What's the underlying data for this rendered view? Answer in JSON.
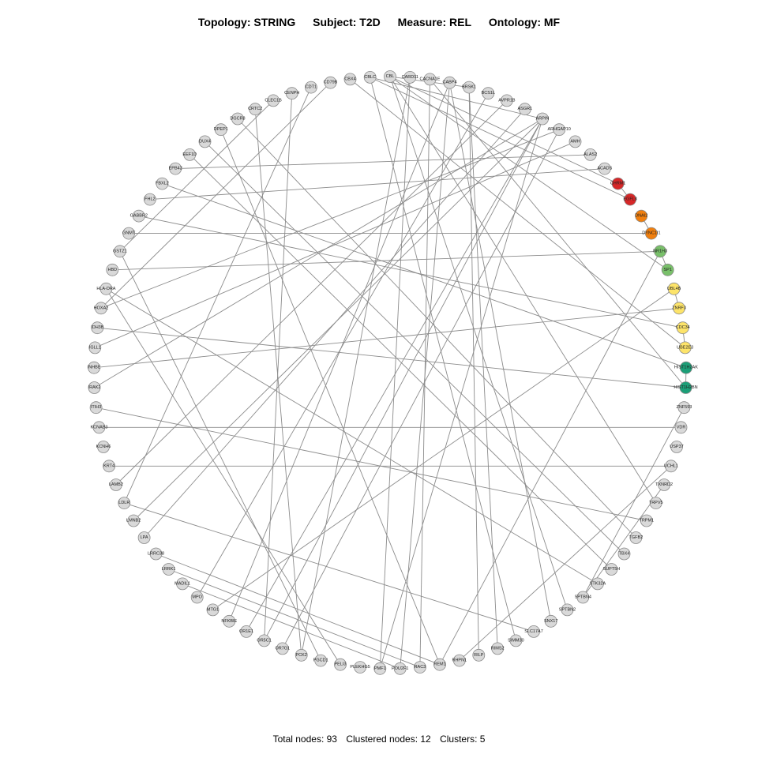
{
  "header": {
    "topology": "Topology: STRING",
    "subject": "Subject: T2D",
    "measure": "Measure: REL",
    "ontology": "Ontology: MF"
  },
  "footer": {
    "total": "Total nodes: 93",
    "clustered": "Clustered nodes: 12",
    "clusters": "Clusters: 5"
  },
  "colors": {
    "default": "#d9d9d9",
    "red": "#d62728",
    "orange": "#f07f0e",
    "green": "#79c06a",
    "yellow": "#fde46a",
    "teal": "#1b9e77"
  },
  "nodes": [
    {
      "id": "CBL",
      "color": "default"
    },
    {
      "id": "CARD11",
      "color": "default"
    },
    {
      "id": "CACNA1E",
      "color": "default"
    },
    {
      "id": "CABP4",
      "color": "default"
    },
    {
      "id": "BRSK1",
      "color": "default"
    },
    {
      "id": "BCS1L",
      "color": "default"
    },
    {
      "id": "AVPR1B",
      "color": "default"
    },
    {
      "id": "ASGR1",
      "color": "default"
    },
    {
      "id": "ARPIN",
      "color": "default"
    },
    {
      "id": "ARHGAP10",
      "color": "default"
    },
    {
      "id": "AMH",
      "color": "default"
    },
    {
      "id": "ALAS2",
      "color": "default"
    },
    {
      "id": "ACADS",
      "color": "default"
    },
    {
      "id": "CHRM1",
      "color": "red"
    },
    {
      "id": "EGFL8",
      "color": "red"
    },
    {
      "id": "DNAI2",
      "color": "orange"
    },
    {
      "id": "DYNC1I1",
      "color": "orange"
    },
    {
      "id": "NR1H3",
      "color": "green"
    },
    {
      "id": "SP1",
      "color": "green"
    },
    {
      "id": "UBL4B",
      "color": "yellow"
    },
    {
      "id": "ZNRF3",
      "color": "yellow"
    },
    {
      "id": "CDC34",
      "color": "yellow"
    },
    {
      "id": "UBE2E3",
      "color": "yellow"
    },
    {
      "id": "HIST1H2AK",
      "color": "teal"
    },
    {
      "id": "HIST1H2BN",
      "color": "teal"
    },
    {
      "id": "ZNF593",
      "color": "default"
    },
    {
      "id": "VDR",
      "color": "default"
    },
    {
      "id": "USP37",
      "color": "default"
    },
    {
      "id": "UCHL1",
      "color": "default"
    },
    {
      "id": "TXNRD2",
      "color": "default"
    },
    {
      "id": "TRPV5",
      "color": "default"
    },
    {
      "id": "TRPM1",
      "color": "default"
    },
    {
      "id": "TGFB2",
      "color": "default"
    },
    {
      "id": "TBX4",
      "color": "default"
    },
    {
      "id": "SUPT5H",
      "color": "default"
    },
    {
      "id": "STK32A",
      "color": "default"
    },
    {
      "id": "SPTBN4",
      "color": "default"
    },
    {
      "id": "SPTBN2",
      "color": "default"
    },
    {
      "id": "SNX17",
      "color": "default"
    },
    {
      "id": "SLC17A7",
      "color": "default"
    },
    {
      "id": "SIMM30",
      "color": "default"
    },
    {
      "id": "RIMS2",
      "color": "default"
    },
    {
      "id": "RILP",
      "color": "default"
    },
    {
      "id": "RHPN1",
      "color": "default"
    },
    {
      "id": "REM1",
      "color": "default"
    },
    {
      "id": "RAC3",
      "color": "default"
    },
    {
      "id": "POU2F1",
      "color": "default"
    },
    {
      "id": "PMF1",
      "color": "default"
    },
    {
      "id": "PLEKHG5",
      "color": "default"
    },
    {
      "id": "PELI3",
      "color": "default"
    },
    {
      "id": "PGCD1",
      "color": "default"
    },
    {
      "id": "PCK2",
      "color": "default"
    },
    {
      "id": "OR7G1",
      "color": "default"
    },
    {
      "id": "OR5C1",
      "color": "default"
    },
    {
      "id": "OR1E1",
      "color": "default"
    },
    {
      "id": "NFKBIE",
      "color": "default"
    },
    {
      "id": "MTG1",
      "color": "default"
    },
    {
      "id": "MPO",
      "color": "default"
    },
    {
      "id": "MADIL1",
      "color": "default"
    },
    {
      "id": "LRRK1",
      "color": "default"
    },
    {
      "id": "LRRC38",
      "color": "default"
    },
    {
      "id": "LPA",
      "color": "default"
    },
    {
      "id": "LMNB2",
      "color": "default"
    },
    {
      "id": "LDLR",
      "color": "default"
    },
    {
      "id": "LAMB2",
      "color": "default"
    },
    {
      "id": "KRT4",
      "color": "default"
    },
    {
      "id": "KCNH6",
      "color": "default"
    },
    {
      "id": "KCNAB3",
      "color": "default"
    },
    {
      "id": "ITIH3",
      "color": "default"
    },
    {
      "id": "IRAK2",
      "color": "default"
    },
    {
      "id": "INHBE",
      "color": "default"
    },
    {
      "id": "IGLL1",
      "color": "default"
    },
    {
      "id": "IDH3B",
      "color": "default"
    },
    {
      "id": "HOXA2",
      "color": "default"
    },
    {
      "id": "HLA-DRA",
      "color": "default"
    },
    {
      "id": "HBD",
      "color": "default"
    },
    {
      "id": "GSTZ1",
      "color": "default"
    },
    {
      "id": "GNMT",
      "color": "default"
    },
    {
      "id": "GABBR2",
      "color": "default"
    },
    {
      "id": "FHL2",
      "color": "default"
    },
    {
      "id": "FBXL2",
      "color": "default"
    },
    {
      "id": "EPB42",
      "color": "default"
    },
    {
      "id": "EEF1D",
      "color": "default"
    },
    {
      "id": "DUX4",
      "color": "default"
    },
    {
      "id": "DPEP1",
      "color": "default"
    },
    {
      "id": "DGCR8",
      "color": "default"
    },
    {
      "id": "CRTC2",
      "color": "default"
    },
    {
      "id": "CLEC1B",
      "color": "default"
    },
    {
      "id": "CENPH",
      "color": "default"
    },
    {
      "id": "CDT1",
      "color": "default"
    },
    {
      "id": "CD79B",
      "color": "default"
    },
    {
      "id": "CBX4",
      "color": "default"
    },
    {
      "id": "CBLC",
      "color": "default"
    }
  ],
  "edges": [
    [
      "CBL",
      "SPTBN2"
    ],
    [
      "CBL",
      "SP1"
    ],
    [
      "CBL",
      "CHRM1"
    ],
    [
      "CARD11",
      "PMF1"
    ],
    [
      "CACNA1E",
      "HIST1H2BN"
    ],
    [
      "CABP4",
      "SNX17"
    ],
    [
      "BRSK1",
      "RILP"
    ],
    [
      "CBLC",
      "EGFL8"
    ],
    [
      "CBX4",
      "UBE2E3"
    ],
    [
      "CD79B",
      "HOXA2"
    ],
    [
      "CDT1",
      "LDLR"
    ],
    [
      "CENPH",
      "OR5C1"
    ],
    [
      "CLEC1B",
      "GSTZ1"
    ],
    [
      "CRTC2",
      "PCK2"
    ],
    [
      "DGCR8",
      "TGFB2"
    ],
    [
      "DPEP1",
      "REM1"
    ],
    [
      "DUX4",
      "TBX4"
    ],
    [
      "EEF1D",
      "SUPT5H"
    ],
    [
      "EPB42",
      "ALAS2"
    ],
    [
      "FBXL2",
      "HIST1H2AK"
    ],
    [
      "FHL2",
      "ACADS"
    ],
    [
      "GABBR2",
      "CDC34"
    ],
    [
      "GNMT",
      "DYNC1I1"
    ],
    [
      "HBD",
      "NR1H3"
    ],
    [
      "HLA-DRA",
      "STK32A"
    ],
    [
      "HLA-DRA",
      "PELI3"
    ],
    [
      "HOXA2",
      "ARHGAP10"
    ],
    [
      "IDH3B",
      "HIST1H2BN"
    ],
    [
      "IGLL1",
      "AMH"
    ],
    [
      "INHBE",
      "ZNRF3"
    ],
    [
      "IRAK2",
      "ARPIN"
    ],
    [
      "ITIH3",
      "TRPM1"
    ],
    [
      "KCNAB3",
      "VDR"
    ],
    [
      "KRT4",
      "UCHL1"
    ],
    [
      "LAMB2",
      "AVPR1B"
    ],
    [
      "LDLR",
      "SLC17A7"
    ],
    [
      "LMNB2",
      "ARPIN"
    ],
    [
      "LPA",
      "ASGR1"
    ],
    [
      "LRRC38",
      "REM1"
    ],
    [
      "LRRK1",
      "RAC3"
    ],
    [
      "MADIL1",
      "POU2F1"
    ],
    [
      "MPO",
      "BCS1L"
    ],
    [
      "MTG1",
      "UBL4B"
    ],
    [
      "NFKBIE",
      "CABP4"
    ],
    [
      "OR1E1",
      "ARPIN"
    ],
    [
      "OR5C1",
      "ARPIN"
    ],
    [
      "OR7G1",
      "ARHGAP10"
    ],
    [
      "PCK2",
      "CARD11"
    ],
    [
      "PGCD1",
      "GSTZ1"
    ],
    [
      "PMF1",
      "ARPIN"
    ],
    [
      "POU2F1",
      "CABP4"
    ],
    [
      "RAC3",
      "CACNA1E"
    ],
    [
      "REM1",
      "NR1H3"
    ],
    [
      "RHPN1",
      "UCHL1"
    ],
    [
      "RIMS2",
      "BRSK1"
    ],
    [
      "SIMM30",
      "CBLC"
    ],
    [
      "SPTBN4",
      "ZNF593"
    ],
    [
      "SPTBN4",
      "TXNRD2"
    ],
    [
      "TRPV5",
      "CBL"
    ],
    [
      "CBLC",
      "ARPIN"
    ],
    [
      "CBL",
      "BRSK1"
    ],
    [
      "DNAI2",
      "DYNC1I1"
    ],
    [
      "UBL4B",
      "ZNRF3"
    ],
    [
      "CDC34",
      "UBE2E3"
    ],
    [
      "HIST1H2AK",
      "HIST1H2BN"
    ],
    [
      "CHRM1",
      "EGFL8"
    ],
    [
      "NR1H3",
      "SP1"
    ]
  ]
}
